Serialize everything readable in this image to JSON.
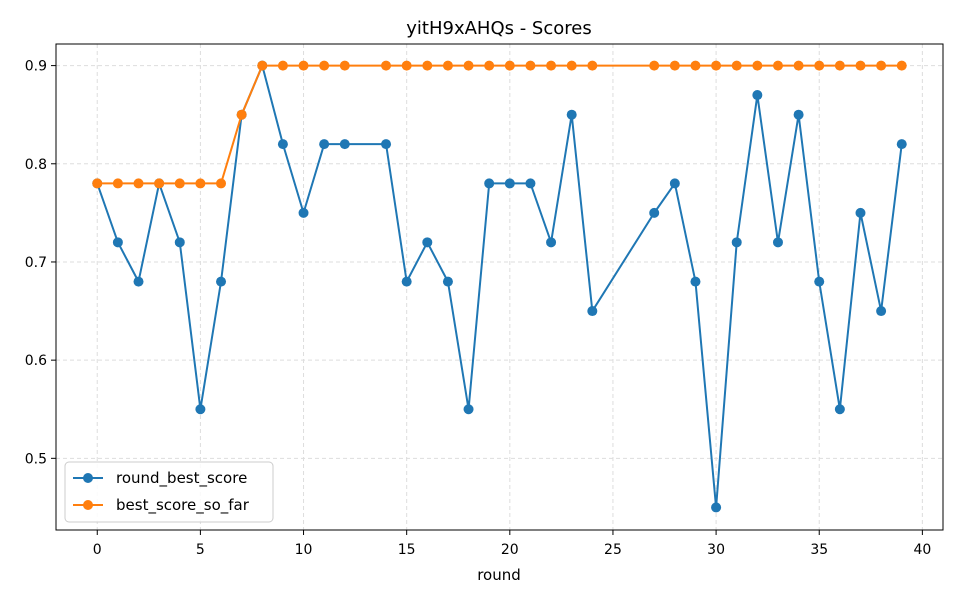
{
  "chart_data": {
    "type": "line",
    "title": "yitH9xAHQs - Scores",
    "xlabel": "round",
    "ylabel": "",
    "xlim": [
      -2,
      41
    ],
    "ylim": [
      0.427,
      0.922
    ],
    "xticks": [
      0,
      5,
      10,
      15,
      20,
      25,
      30,
      35,
      40
    ],
    "yticks": [
      0.5,
      0.6,
      0.7,
      0.8,
      0.9
    ],
    "ytick_labels": [
      "0.5",
      "0.6",
      "0.7",
      "0.8",
      "0.9"
    ],
    "grid": true,
    "legend_position": "lower-left",
    "series": [
      {
        "name": "round_best_score",
        "color": "#1f77b4",
        "points": [
          [
            0,
            0.78
          ],
          [
            1,
            0.72
          ],
          [
            2,
            0.68
          ],
          [
            3,
            0.78
          ],
          [
            4,
            0.72
          ],
          [
            5,
            0.55
          ],
          [
            6,
            0.68
          ],
          [
            7,
            0.85
          ],
          [
            8,
            0.9
          ],
          [
            9,
            0.82
          ],
          [
            10,
            0.75
          ],
          [
            11,
            0.82
          ],
          [
            12,
            0.82
          ],
          [
            14,
            0.82
          ],
          [
            15,
            0.68
          ],
          [
            16,
            0.72
          ],
          [
            17,
            0.68
          ],
          [
            18,
            0.55
          ],
          [
            19,
            0.78
          ],
          [
            20,
            0.78
          ],
          [
            21,
            0.78
          ],
          [
            22,
            0.72
          ],
          [
            23,
            0.85
          ],
          [
            24,
            0.65
          ],
          [
            27,
            0.75
          ],
          [
            28,
            0.78
          ],
          [
            29,
            0.68
          ],
          [
            30,
            0.45
          ],
          [
            31,
            0.72
          ],
          [
            32,
            0.87
          ],
          [
            33,
            0.72
          ],
          [
            34,
            0.85
          ],
          [
            35,
            0.68
          ],
          [
            36,
            0.55
          ],
          [
            37,
            0.75
          ],
          [
            38,
            0.65
          ],
          [
            39,
            0.82
          ]
        ]
      },
      {
        "name": "best_score_so_far",
        "color": "#ff7f0e",
        "points": [
          [
            0,
            0.78
          ],
          [
            1,
            0.78
          ],
          [
            2,
            0.78
          ],
          [
            3,
            0.78
          ],
          [
            4,
            0.78
          ],
          [
            5,
            0.78
          ],
          [
            6,
            0.78
          ],
          [
            7,
            0.85
          ],
          [
            8,
            0.9
          ],
          [
            9,
            0.9
          ],
          [
            10,
            0.9
          ],
          [
            11,
            0.9
          ],
          [
            12,
            0.9
          ],
          [
            14,
            0.9
          ],
          [
            15,
            0.9
          ],
          [
            16,
            0.9
          ],
          [
            17,
            0.9
          ],
          [
            18,
            0.9
          ],
          [
            19,
            0.9
          ],
          [
            20,
            0.9
          ],
          [
            21,
            0.9
          ],
          [
            22,
            0.9
          ],
          [
            23,
            0.9
          ],
          [
            24,
            0.9
          ],
          [
            27,
            0.9
          ],
          [
            28,
            0.9
          ],
          [
            29,
            0.9
          ],
          [
            30,
            0.9
          ],
          [
            31,
            0.9
          ],
          [
            32,
            0.9
          ],
          [
            33,
            0.9
          ],
          [
            34,
            0.9
          ],
          [
            35,
            0.9
          ],
          [
            36,
            0.9
          ],
          [
            37,
            0.9
          ],
          [
            38,
            0.9
          ],
          [
            39,
            0.9
          ]
        ]
      }
    ]
  }
}
